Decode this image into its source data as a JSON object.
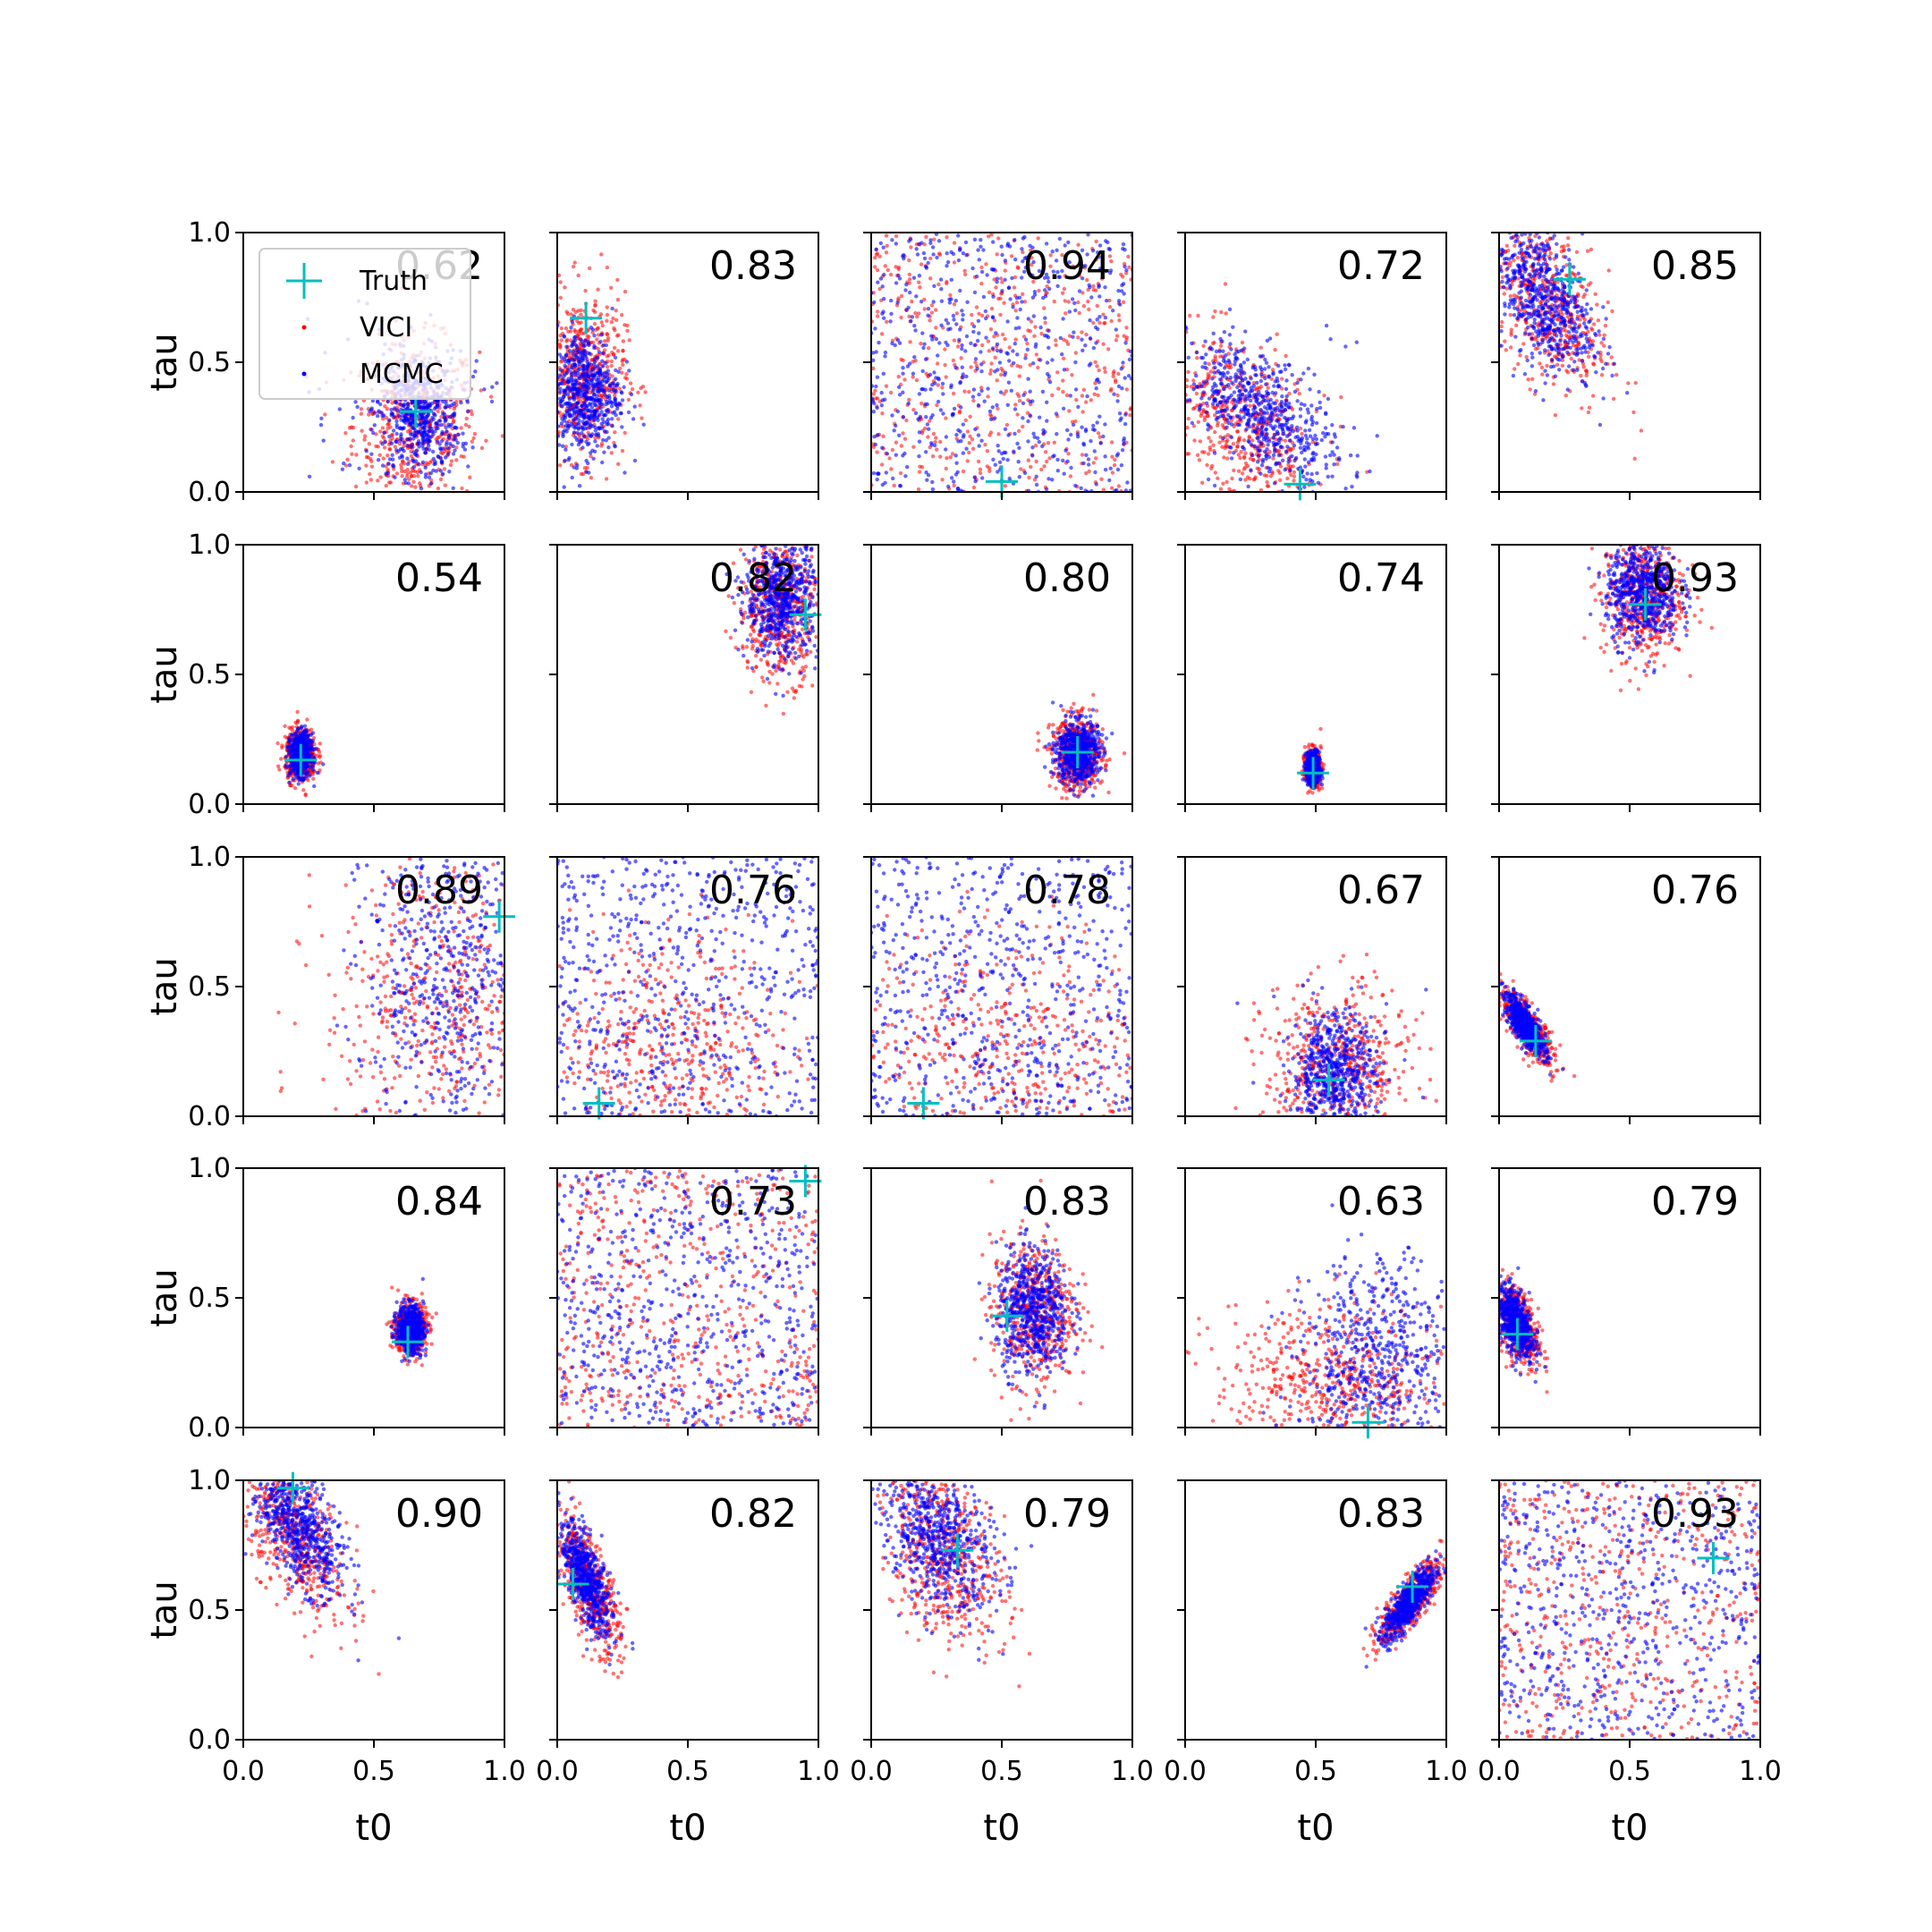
{
  "chart_data": {
    "type": "scatter",
    "layout": "5x5 grid of panels",
    "xlabel": "t0",
    "ylabel": "tau",
    "xlim": [
      0.0,
      1.0
    ],
    "ylim": [
      0.0,
      1.0
    ],
    "x_ticks": [
      "0.0",
      "0.5",
      "1.0"
    ],
    "y_ticks": [
      "0.0",
      "0.5",
      "1.0"
    ],
    "legend": {
      "placement": "upper-left of first panel",
      "entries": [
        {
          "label": "Truth",
          "marker": "plus",
          "color": "#00bfbf"
        },
        {
          "label": "VICI",
          "marker": "dot",
          "color": "#ff0000"
        },
        {
          "label": "MCMC",
          "marker": "dot",
          "color": "#0000ff"
        }
      ]
    },
    "colors": {
      "VICI": "#ff0000",
      "MCMC": "#0000ff",
      "Truth": "#00bfbf"
    },
    "panels": [
      {
        "overlap": "0.62",
        "truth": [
          0.66,
          0.31
        ],
        "vici": {
          "cx": 0.66,
          "cy": 0.26,
          "sx": 0.12,
          "sy": 0.16,
          "rho": 0
        },
        "mcmc": {
          "cx": 0.67,
          "cy": 0.3,
          "sx": 0.08,
          "sy": 0.12,
          "rho": 0,
          "spread": 0.25
        }
      },
      {
        "overlap": "0.83",
        "truth": [
          0.11,
          0.67
        ],
        "vici": {
          "cx": 0.1,
          "cy": 0.45,
          "sx": 0.08,
          "sy": 0.16,
          "rho": 0
        },
        "mcmc": {
          "cx": 0.1,
          "cy": 0.38,
          "sx": 0.07,
          "sy": 0.12,
          "rho": 0
        }
      },
      {
        "overlap": "0.94",
        "truth": [
          0.5,
          0.04
        ],
        "vici": {
          "uniform": true
        },
        "mcmc": {
          "uniform": true
        }
      },
      {
        "overlap": "0.72",
        "truth": [
          0.44,
          0.03
        ],
        "vici": {
          "cx": 0.22,
          "cy": 0.25,
          "sx": 0.16,
          "sy": 0.18,
          "rho": -0.5
        },
        "mcmc": {
          "cx": 0.3,
          "cy": 0.3,
          "sx": 0.14,
          "sy": 0.14,
          "rho": -0.6,
          "spread": 0.2
        }
      },
      {
        "overlap": "0.85",
        "truth": [
          0.27,
          0.82
        ],
        "vici": {
          "cx": 0.18,
          "cy": 0.72,
          "sx": 0.12,
          "sy": 0.18,
          "rho": -0.5
        },
        "mcmc": {
          "cx": 0.16,
          "cy": 0.76,
          "sx": 0.1,
          "sy": 0.15,
          "rho": -0.5
        }
      },
      {
        "overlap": "0.54",
        "truth": [
          0.22,
          0.17
        ],
        "vici": {
          "cx": 0.22,
          "cy": 0.19,
          "sx": 0.03,
          "sy": 0.05,
          "rho": 0
        },
        "mcmc": {
          "cx": 0.22,
          "cy": 0.19,
          "sx": 0.02,
          "sy": 0.04,
          "rho": 0
        }
      },
      {
        "overlap": "0.82",
        "truth": [
          0.95,
          0.73
        ],
        "vici": {
          "cx": 0.85,
          "cy": 0.76,
          "sx": 0.08,
          "sy": 0.14,
          "rho": 0
        },
        "mcmc": {
          "cx": 0.86,
          "cy": 0.79,
          "sx": 0.07,
          "sy": 0.11,
          "rho": 0
        }
      },
      {
        "overlap": "0.80",
        "truth": [
          0.79,
          0.2
        ],
        "vici": {
          "cx": 0.79,
          "cy": 0.19,
          "sx": 0.05,
          "sy": 0.07,
          "rho": 0
        },
        "mcmc": {
          "cx": 0.79,
          "cy": 0.2,
          "sx": 0.04,
          "sy": 0.06,
          "rho": 0
        }
      },
      {
        "overlap": "0.74",
        "truth": [
          0.49,
          0.12
        ],
        "vici": {
          "cx": 0.49,
          "cy": 0.14,
          "sx": 0.015,
          "sy": 0.035,
          "rho": 0
        },
        "mcmc": {
          "cx": 0.49,
          "cy": 0.14,
          "sx": 0.012,
          "sy": 0.03,
          "rho": 0
        }
      },
      {
        "overlap": "0.93",
        "truth": [
          0.56,
          0.77
        ],
        "vici": {
          "cx": 0.55,
          "cy": 0.8,
          "sx": 0.08,
          "sy": 0.12,
          "rho": 0
        },
        "mcmc": {
          "cx": 0.55,
          "cy": 0.82,
          "sx": 0.07,
          "sy": 0.1,
          "rho": 0
        }
      },
      {
        "overlap": "0.89",
        "truth": [
          0.98,
          0.77
        ],
        "vici": {
          "cx": 0.75,
          "cy": 0.45,
          "sx": 0.22,
          "sy": 0.3,
          "rho": 0
        },
        "mcmc": {
          "cx": 0.82,
          "cy": 0.55,
          "sx": 0.18,
          "sy": 0.3,
          "rho": 0,
          "spread": 0.3
        }
      },
      {
        "overlap": "0.76",
        "truth": [
          0.16,
          0.05
        ],
        "vici": {
          "cx": 0.4,
          "cy": 0.25,
          "sx": 0.25,
          "sy": 0.25,
          "rho": 0
        },
        "mcmc": {
          "uniform": true
        }
      },
      {
        "overlap": "0.78",
        "truth": [
          0.2,
          0.05
        ],
        "vici": {
          "cx": 0.5,
          "cy": 0.25,
          "sx": 0.3,
          "sy": 0.25,
          "rho": 0
        },
        "mcmc": {
          "uniform": true
        }
      },
      {
        "overlap": "0.67",
        "truth": [
          0.55,
          0.14
        ],
        "vici": {
          "cx": 0.58,
          "cy": 0.18,
          "sx": 0.14,
          "sy": 0.16,
          "rho": 0
        },
        "mcmc": {
          "cx": 0.57,
          "cy": 0.16,
          "sx": 0.08,
          "sy": 0.12,
          "rho": 0,
          "spread": 0.1
        }
      },
      {
        "overlap": "0.76",
        "truth": [
          0.14,
          0.29
        ],
        "vici": {
          "cx": 0.11,
          "cy": 0.34,
          "sx": 0.05,
          "sy": 0.07,
          "rho": -0.8
        },
        "mcmc": {
          "cx": 0.1,
          "cy": 0.35,
          "sx": 0.04,
          "sy": 0.06,
          "rho": -0.8
        }
      },
      {
        "overlap": "0.84",
        "truth": [
          0.63,
          0.33
        ],
        "vici": {
          "cx": 0.64,
          "cy": 0.38,
          "sx": 0.03,
          "sy": 0.05,
          "rho": 0
        },
        "mcmc": {
          "cx": 0.64,
          "cy": 0.38,
          "sx": 0.025,
          "sy": 0.045,
          "rho": 0
        }
      },
      {
        "overlap": "0.73",
        "truth": [
          0.95,
          0.95
        ],
        "vici": {
          "uniform": true
        },
        "mcmc": {
          "uniform": true
        }
      },
      {
        "overlap": "0.83",
        "truth": [
          0.52,
          0.43
        ],
        "vici": {
          "cx": 0.62,
          "cy": 0.45,
          "sx": 0.08,
          "sy": 0.14,
          "rho": 0
        },
        "mcmc": {
          "cx": 0.62,
          "cy": 0.45,
          "sx": 0.07,
          "sy": 0.12,
          "rho": 0
        }
      },
      {
        "overlap": "0.63",
        "truth": [
          0.7,
          0.02
        ],
        "vici": {
          "cx": 0.55,
          "cy": 0.18,
          "sx": 0.22,
          "sy": 0.15,
          "rho": 0
        },
        "mcmc": {
          "cx": 0.75,
          "cy": 0.25,
          "sx": 0.15,
          "sy": 0.2,
          "rho": 0,
          "spread": 0.3
        }
      },
      {
        "overlap": "0.79",
        "truth": [
          0.07,
          0.36
        ],
        "vici": {
          "cx": 0.07,
          "cy": 0.4,
          "sx": 0.04,
          "sy": 0.08,
          "rho": -0.5
        },
        "mcmc": {
          "cx": 0.06,
          "cy": 0.41,
          "sx": 0.035,
          "sy": 0.07,
          "rho": -0.5
        }
      },
      {
        "overlap": "0.90",
        "truth": [
          0.19,
          0.97
        ],
        "vici": {
          "cx": 0.2,
          "cy": 0.78,
          "sx": 0.1,
          "sy": 0.16,
          "rho": -0.6
        },
        "mcmc": {
          "cx": 0.21,
          "cy": 0.82,
          "sx": 0.09,
          "sy": 0.13,
          "rho": -0.6
        }
      },
      {
        "overlap": "0.82",
        "truth": [
          0.06,
          0.6
        ],
        "vici": {
          "cx": 0.12,
          "cy": 0.6,
          "sx": 0.06,
          "sy": 0.13,
          "rho": -0.7
        },
        "mcmc": {
          "cx": 0.11,
          "cy": 0.62,
          "sx": 0.05,
          "sy": 0.11,
          "rho": -0.7
        }
      },
      {
        "overlap": "0.79",
        "truth": [
          0.33,
          0.73
        ],
        "vici": {
          "cx": 0.28,
          "cy": 0.72,
          "sx": 0.12,
          "sy": 0.18,
          "rho": -0.4
        },
        "mcmc": {
          "cx": 0.25,
          "cy": 0.78,
          "sx": 0.11,
          "sy": 0.15,
          "rho": -0.4
        }
      },
      {
        "overlap": "0.83",
        "truth": [
          0.87,
          0.59
        ],
        "vici": {
          "cx": 0.86,
          "cy": 0.53,
          "sx": 0.06,
          "sy": 0.08,
          "rho": 0.8
        },
        "mcmc": {
          "cx": 0.86,
          "cy": 0.53,
          "sx": 0.05,
          "sy": 0.07,
          "rho": 0.8
        }
      },
      {
        "overlap": "0.93",
        "truth": [
          0.82,
          0.7
        ],
        "vici": {
          "uniform": true
        },
        "mcmc": {
          "uniform": true
        }
      }
    ]
  }
}
